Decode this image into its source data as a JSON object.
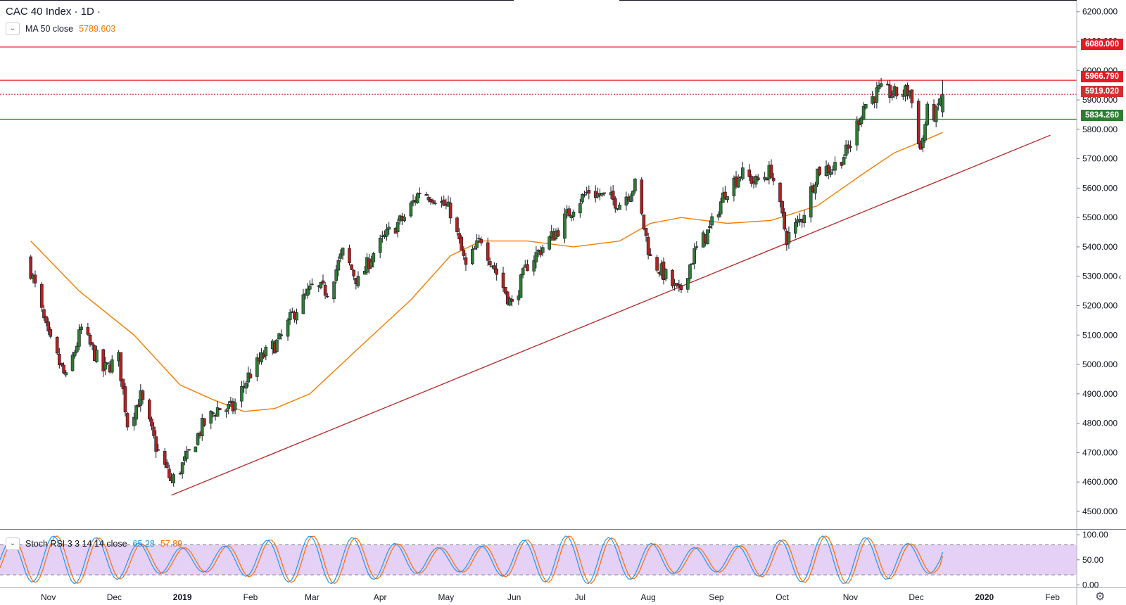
{
  "header": {
    "title": "CAC 40 Index · 1D ·",
    "ma_label": "MA 50 close",
    "ma_value": "5789.603",
    "rsi_label": "Stoch RSI 3 3 14 14 close",
    "rsi_k_value": "65.28",
    "rsi_d_value": "57.89"
  },
  "icons": {
    "collapse": "chevron-down-icon",
    "settings": "gear-icon"
  },
  "colors": {
    "up": "#26a69a",
    "up_body": "#3f8f3f",
    "down": "#b22222",
    "ma": "#f57c00",
    "trendline": "#b22222",
    "resistance": "#e31b23",
    "support": "#2e7d32",
    "rsi_k": "#2196f3",
    "rsi_d": "#ff6d00",
    "rsi_band": "#e1c8f5"
  },
  "price_tags": [
    {
      "label": "6080.000",
      "value": 6080.0,
      "color": "#e31b23",
      "style": "solid"
    },
    {
      "label": "5966.790",
      "value": 5966.79,
      "color": "#e31b23",
      "style": "solid"
    },
    {
      "label": "5919.020",
      "value": 5919.02,
      "color": "#d32f2f",
      "style": "dotted"
    },
    {
      "label": "5834.260",
      "value": 5834.26,
      "color": "#2e7d32",
      "style": "solid"
    }
  ],
  "chart_data": {
    "type": "candlestick",
    "title": "CAC 40 Index · 1D",
    "price_axis": {
      "ylim": [
        4440,
        6240
      ],
      "ticks": [
        4500,
        4600,
        4700,
        4800,
        4900,
        5000,
        5100,
        5200,
        5300,
        5400,
        5500,
        5600,
        5700,
        5800,
        5900,
        6000,
        6100,
        6200
      ],
      "tick_labels": [
        "4500.000",
        "4600.000",
        "4700.000",
        "4800.000",
        "4900.000",
        "5000.000",
        "5100.000",
        "5200.000",
        "5300.000",
        "5400.000",
        "5500.000",
        "5600.000",
        "5700.000",
        "5800.000",
        "5900.000",
        "6000.000",
        "6100.000",
        "6200.000"
      ]
    },
    "time_axis": {
      "labels": [
        "Nov",
        "Dec",
        "2019",
        "Feb",
        "Mar",
        "Apr",
        "May",
        "Jun",
        "Jul",
        "Aug",
        "Sep",
        "Oct",
        "Nov",
        "Dec",
        "2020",
        "Feb"
      ],
      "bold_labels": [
        "2019",
        "2020"
      ]
    },
    "price_path": [
      {
        "t": "2018-10-24",
        "close": 5320
      },
      {
        "t": "2018-11-01",
        "close": 5090
      },
      {
        "t": "2018-11-09",
        "close": 4950
      },
      {
        "t": "2018-11-16",
        "close": 5120
      },
      {
        "t": "2018-11-26",
        "close": 4980
      },
      {
        "t": "2018-12-03",
        "close": 5020
      },
      {
        "t": "2018-12-07",
        "close": 4800
      },
      {
        "t": "2018-12-13",
        "close": 4890
      },
      {
        "t": "2018-12-20",
        "close": 4720
      },
      {
        "t": "2018-12-27",
        "close": 4600
      },
      {
        "t": "2019-01-03",
        "close": 4680
      },
      {
        "t": "2019-01-10",
        "close": 4790
      },
      {
        "t": "2019-01-17",
        "close": 4850
      },
      {
        "t": "2019-01-24",
        "close": 4850
      },
      {
        "t": "2019-01-31",
        "close": 4960
      },
      {
        "t": "2019-02-07",
        "close": 5030
      },
      {
        "t": "2019-02-14",
        "close": 5080
      },
      {
        "t": "2019-02-21",
        "close": 5180
      },
      {
        "t": "2019-03-01",
        "close": 5260
      },
      {
        "t": "2019-03-08",
        "close": 5250
      },
      {
        "t": "2019-03-15",
        "close": 5380
      },
      {
        "t": "2019-03-22",
        "close": 5280
      },
      {
        "t": "2019-03-29",
        "close": 5380
      },
      {
        "t": "2019-04-05",
        "close": 5450
      },
      {
        "t": "2019-04-12",
        "close": 5500
      },
      {
        "t": "2019-04-19",
        "close": 5590
      },
      {
        "t": "2019-04-26",
        "close": 5570
      },
      {
        "t": "2019-05-03",
        "close": 5520
      },
      {
        "t": "2019-05-10",
        "close": 5330
      },
      {
        "t": "2019-05-17",
        "close": 5430
      },
      {
        "t": "2019-05-24",
        "close": 5310
      },
      {
        "t": "2019-05-31",
        "close": 5200
      },
      {
        "t": "2019-06-07",
        "close": 5340
      },
      {
        "t": "2019-06-14",
        "close": 5400
      },
      {
        "t": "2019-06-21",
        "close": 5460
      },
      {
        "t": "2019-06-28",
        "close": 5540
      },
      {
        "t": "2019-07-05",
        "close": 5590
      },
      {
        "t": "2019-07-12",
        "close": 5570
      },
      {
        "t": "2019-07-19",
        "close": 5550
      },
      {
        "t": "2019-07-26",
        "close": 5610
      },
      {
        "t": "2019-08-02",
        "close": 5360
      },
      {
        "t": "2019-08-09",
        "close": 5300
      },
      {
        "t": "2019-08-15",
        "close": 5240
      },
      {
        "t": "2019-08-22",
        "close": 5380
      },
      {
        "t": "2019-08-29",
        "close": 5460
      },
      {
        "t": "2019-09-05",
        "close": 5590
      },
      {
        "t": "2019-09-12",
        "close": 5650
      },
      {
        "t": "2019-09-19",
        "close": 5620
      },
      {
        "t": "2019-09-26",
        "close": 5660
      },
      {
        "t": "2019-10-03",
        "close": 5430
      },
      {
        "t": "2019-10-10",
        "close": 5500
      },
      {
        "t": "2019-10-17",
        "close": 5660
      },
      {
        "t": "2019-10-24",
        "close": 5670
      },
      {
        "t": "2019-10-31",
        "close": 5730
      },
      {
        "t": "2019-11-07",
        "close": 5880
      },
      {
        "t": "2019-11-14",
        "close": 5930
      },
      {
        "t": "2019-11-21",
        "close": 5920
      },
      {
        "t": "2019-11-28",
        "close": 5930
      },
      {
        "t": "2019-12-03",
        "close": 5730
      },
      {
        "t": "2019-12-06",
        "close": 5860
      },
      {
        "t": "2019-12-10",
        "close": 5850
      },
      {
        "t": "2019-12-13",
        "close": 5940
      }
    ],
    "last_candle": {
      "t": "2019-12-13",
      "close": 5919.02,
      "high": 5966.79
    },
    "ma50": [
      {
        "t": "2018-10-24",
        "value": 5420
      },
      {
        "t": "2018-11-15",
        "value": 5250
      },
      {
        "t": "2018-12-10",
        "value": 5100
      },
      {
        "t": "2018-12-31",
        "value": 4930
      },
      {
        "t": "2019-01-15",
        "value": 4880
      },
      {
        "t": "2019-01-29",
        "value": 4840
      },
      {
        "t": "2019-02-12",
        "value": 4850
      },
      {
        "t": "2019-02-28",
        "value": 4900
      },
      {
        "t": "2019-03-20",
        "value": 5040
      },
      {
        "t": "2019-04-15",
        "value": 5220
      },
      {
        "t": "2019-05-03",
        "value": 5370
      },
      {
        "t": "2019-05-17",
        "value": 5420
      },
      {
        "t": "2019-06-07",
        "value": 5420
      },
      {
        "t": "2019-06-28",
        "value": 5400
      },
      {
        "t": "2019-07-19",
        "value": 5420
      },
      {
        "t": "2019-08-02",
        "value": 5480
      },
      {
        "t": "2019-08-16",
        "value": 5500
      },
      {
        "t": "2019-09-06",
        "value": 5480
      },
      {
        "t": "2019-09-26",
        "value": 5490
      },
      {
        "t": "2019-10-17",
        "value": 5540
      },
      {
        "t": "2019-11-07",
        "value": 5650
      },
      {
        "t": "2019-11-21",
        "value": 5720
      },
      {
        "t": "2019-12-04",
        "value": 5760
      },
      {
        "t": "2019-12-13",
        "value": 5789.603
      }
    ],
    "trendline": {
      "start": {
        "t": "2018-12-27",
        "value": 4555
      },
      "end": {
        "t": "2020-01-31",
        "value": 5780
      }
    },
    "horizontal_lines": [
      {
        "value": 6080.0,
        "style": "solid"
      },
      {
        "value": 5966.79,
        "style": "solid"
      },
      {
        "value": 5919.02,
        "style": "dotted"
      },
      {
        "value": 5834.26,
        "style": "solid"
      }
    ],
    "stoch_rsi": {
      "ylim": [
        -5,
        110
      ],
      "ticks": [
        0,
        50,
        100
      ],
      "tick_labels": [
        "0.00",
        "50.00",
        "100.00"
      ],
      "bands": [
        20,
        80
      ],
      "k_last": 65.28,
      "d_last": 57.89
    }
  }
}
